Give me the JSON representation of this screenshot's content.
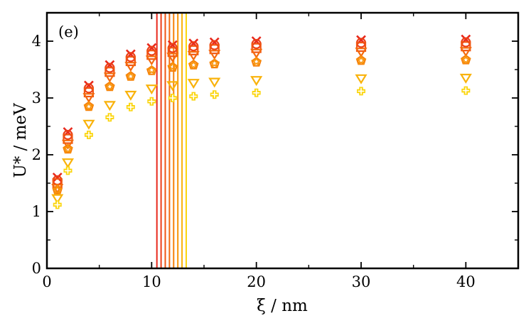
{
  "chart_data": {
    "type": "scatter",
    "title": "",
    "panel_label": "(e)",
    "xlabel": "ξ / nm",
    "ylabel": "U* / meV",
    "xlim": [
      0,
      45
    ],
    "ylim": [
      0,
      4.5
    ],
    "xticks": [
      0,
      10,
      20,
      30,
      40
    ],
    "yticks": [
      0,
      1,
      2,
      3,
      4
    ],
    "x": [
      1,
      2,
      4,
      6,
      8,
      10,
      12,
      14,
      16,
      20,
      30,
      40
    ],
    "series": [
      {
        "marker": "x",
        "color": "#e8291c",
        "values": [
          1.6,
          2.4,
          3.22,
          3.58,
          3.77,
          3.88,
          3.93,
          3.96,
          3.98,
          4.0,
          4.02,
          4.03
        ]
      },
      {
        "marker": "circle",
        "color": "#ec3f17",
        "values": [
          1.55,
          2.35,
          3.17,
          3.53,
          3.72,
          3.83,
          3.88,
          3.91,
          3.93,
          3.95,
          3.97,
          3.98
        ]
      },
      {
        "marker": "square",
        "color": "#f05513",
        "values": [
          1.5,
          2.28,
          3.1,
          3.46,
          3.65,
          3.76,
          3.81,
          3.84,
          3.86,
          3.88,
          3.9,
          3.91
        ]
      },
      {
        "marker": "triangle-down",
        "color": "#f46a0f",
        "values": [
          1.42,
          2.2,
          3.02,
          3.38,
          3.57,
          3.68,
          3.73,
          3.76,
          3.78,
          3.8,
          3.82,
          3.83
        ]
      },
      {
        "marker": "pentagon",
        "color": "#f6800b",
        "values": [
          1.38,
          2.1,
          2.85,
          3.2,
          3.38,
          3.48,
          3.54,
          3.58,
          3.6,
          3.63,
          3.66,
          3.67
        ]
      },
      {
        "marker": "star",
        "color": "#f8940a",
        "values": [
          1.38,
          2.1,
          2.85,
          3.2,
          3.38,
          3.49,
          3.55,
          3.58,
          3.61,
          3.64,
          3.66,
          3.67
        ]
      },
      {
        "marker": "triangle-down",
        "color": "#f9b20a",
        "values": [
          1.24,
          1.87,
          2.55,
          2.88,
          3.06,
          3.17,
          3.23,
          3.27,
          3.29,
          3.32,
          3.35,
          3.36
        ]
      },
      {
        "marker": "plus",
        "color": "#fbd50c",
        "values": [
          1.12,
          1.72,
          2.35,
          2.66,
          2.84,
          2.94,
          3.0,
          3.03,
          3.06,
          3.09,
          3.12,
          3.13
        ]
      }
    ],
    "vlines": [
      {
        "x": 10.5,
        "color": "#e8291c"
      },
      {
        "x": 10.9,
        "color": "#ec3f17"
      },
      {
        "x": 11.3,
        "color": "#f05513"
      },
      {
        "x": 11.7,
        "color": "#f46a0f"
      },
      {
        "x": 12.1,
        "color": "#f6800b"
      },
      {
        "x": 12.5,
        "color": "#f8940a"
      },
      {
        "x": 12.9,
        "color": "#f9b20a"
      },
      {
        "x": 13.3,
        "color": "#fbd50c"
      }
    ],
    "grid": false,
    "legend": "none"
  }
}
